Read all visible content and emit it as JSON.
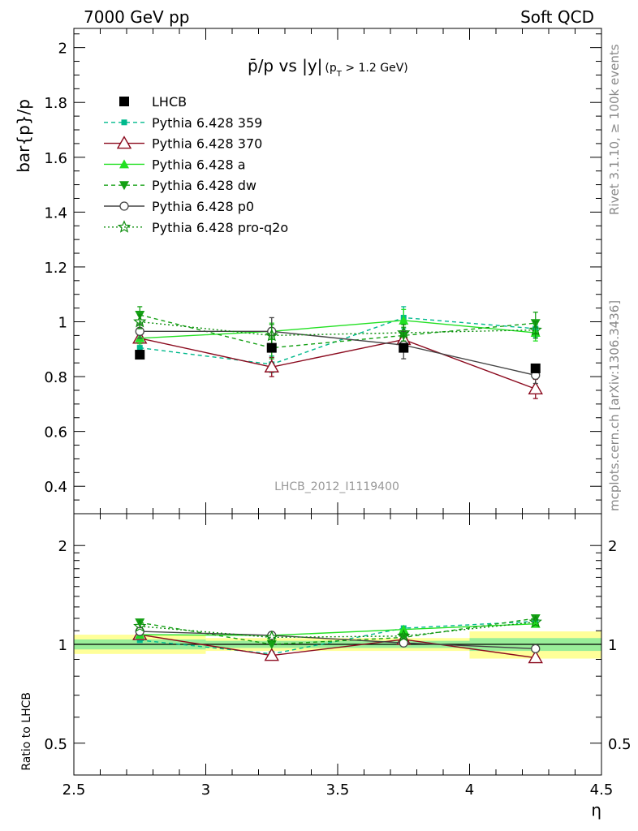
{
  "header": {
    "left_label": "7000 GeV pp",
    "right_label": "Soft QCD"
  },
  "side_labels": {
    "rivet": "Rivet 3.1.10, ≥ 100k events",
    "mcplots": "mcplots.cern.ch [arXiv:1306.3436]"
  },
  "watermark": "LHCB_2012_I1119400",
  "chart_data": [
    {
      "panel": "main",
      "type": "line",
      "title_main": "p̄/p vs |y|",
      "title_sub": "(p",
      "title_sub_T": "T",
      "title_sub_rest": " > 1.2 GeV)",
      "ylabel": "bar{p}/p",
      "xlim": [
        2.5,
        4.5
      ],
      "ylim": [
        0.3,
        2.07
      ],
      "yticks": [
        0.4,
        0.6,
        0.8,
        1,
        1.2,
        1.4,
        1.6,
        1.8,
        2
      ],
      "ytick_labels": [
        "0.4",
        "0.6",
        "0.8",
        "1",
        "1.2",
        "1.4",
        "1.6",
        "1.8",
        "2"
      ],
      "x": [
        2.75,
        3.25,
        3.75,
        4.25
      ],
      "legend_position": "top-left",
      "series": [
        {
          "name": "LHCB",
          "color": "#000000",
          "marker": "square-filled",
          "line": "none",
          "values": [
            0.88,
            0.905,
            0.905,
            0.83
          ],
          "err": [
            0.008,
            0.01,
            0.01,
            0.01
          ]
        },
        {
          "name": "Pythia 6.428 359",
          "color": "#00b98c",
          "marker": "square-small",
          "line": "dashed",
          "values": [
            0.905,
            0.845,
            1.015,
            0.975
          ],
          "err": [
            0.02,
            0.03,
            0.04,
            0.03
          ]
        },
        {
          "name": "Pythia 6.428 370",
          "color": "#8b0a1e",
          "marker": "triangle-open",
          "line": "solid",
          "values": [
            0.94,
            0.835,
            0.935,
            0.755
          ],
          "err": [
            0.02,
            0.035,
            0.03,
            0.035
          ]
        },
        {
          "name": "Pythia 6.428 a",
          "color": "#22e022",
          "marker": "triangle-filled",
          "line": "solid",
          "values": [
            0.94,
            0.965,
            1.005,
            0.96
          ],
          "err": [
            0.02,
            0.03,
            0.04,
            0.03
          ]
        },
        {
          "name": "Pythia 6.428 dw",
          "color": "#14a014",
          "marker": "triangle-down-filled",
          "line": "dashed",
          "values": [
            1.025,
            0.905,
            0.95,
            0.995
          ],
          "err": [
            0.03,
            0.04,
            0.03,
            0.04
          ]
        },
        {
          "name": "Pythia 6.428 p0",
          "color": "#444444",
          "marker": "circle-open",
          "line": "solid",
          "values": [
            0.965,
            0.965,
            0.915,
            0.805
          ],
          "err": [
            0.025,
            0.05,
            0.05,
            0.03
          ]
        },
        {
          "name": "Pythia 6.428 pro-q2o",
          "color": "#0a8c0a",
          "marker": "star-open",
          "line": "dotted",
          "values": [
            1.0,
            0.95,
            0.96,
            0.97
          ],
          "err": [
            0.025,
            0.04,
            0.03,
            0.03
          ]
        }
      ]
    },
    {
      "panel": "ratio",
      "type": "line",
      "ylabel": "Ratio to LHCB",
      "xlabel": "η",
      "xlim": [
        2.5,
        4.5
      ],
      "ylim": [
        0.4,
        2.5
      ],
      "yscale": "log",
      "yticks": [
        0.5,
        1,
        2
      ],
      "ytick_labels": [
        "0.5",
        "1",
        "2"
      ],
      "xticks": [
        2.5,
        3,
        3.5,
        4,
        4.5
      ],
      "xtick_labels": [
        "2.5",
        "3",
        "3.5",
        "4",
        "4.5"
      ],
      "x": [
        2.75,
        3.25,
        3.75,
        4.25
      ],
      "bands": [
        {
          "x0": 2.5,
          "x1": 3.0,
          "yellow": [
            0.935,
            1.07
          ],
          "green": [
            0.965,
            1.035
          ]
        },
        {
          "x0": 3.0,
          "x1": 3.5,
          "yellow": [
            0.955,
            1.045
          ],
          "green": [
            0.975,
            1.025
          ]
        },
        {
          "x0": 3.5,
          "x1": 4.0,
          "yellow": [
            0.955,
            1.045
          ],
          "green": [
            0.975,
            1.025
          ]
        },
        {
          "x0": 4.0,
          "x1": 4.5,
          "yellow": [
            0.905,
            1.095
          ],
          "green": [
            0.955,
            1.045
          ]
        }
      ],
      "series": [
        {
          "name": "Pythia 6.428 359",
          "color": "#00b98c",
          "marker": "square-small",
          "line": "dashed",
          "values": [
            1.03,
            0.935,
            1.12,
            1.175
          ]
        },
        {
          "name": "Pythia 6.428 370",
          "color": "#8b0a1e",
          "marker": "triangle-open",
          "line": "solid",
          "values": [
            1.07,
            0.925,
            1.035,
            0.91
          ]
        },
        {
          "name": "Pythia 6.428 a",
          "color": "#22e022",
          "marker": "triangle-filled",
          "line": "solid",
          "values": [
            1.07,
            1.065,
            1.11,
            1.155
          ]
        },
        {
          "name": "Pythia 6.428 dw",
          "color": "#14a014",
          "marker": "triangle-down-filled",
          "line": "dashed",
          "values": [
            1.165,
            1.0,
            1.05,
            1.2
          ]
        },
        {
          "name": "Pythia 6.428 p0",
          "color": "#444444",
          "marker": "circle-open",
          "line": "solid",
          "values": [
            1.095,
            1.065,
            1.01,
            0.97
          ]
        },
        {
          "name": "Pythia 6.428 pro-q2o",
          "color": "#0a8c0a",
          "marker": "star-open",
          "line": "dotted",
          "values": [
            1.135,
            1.05,
            1.06,
            1.17
          ]
        }
      ]
    }
  ]
}
